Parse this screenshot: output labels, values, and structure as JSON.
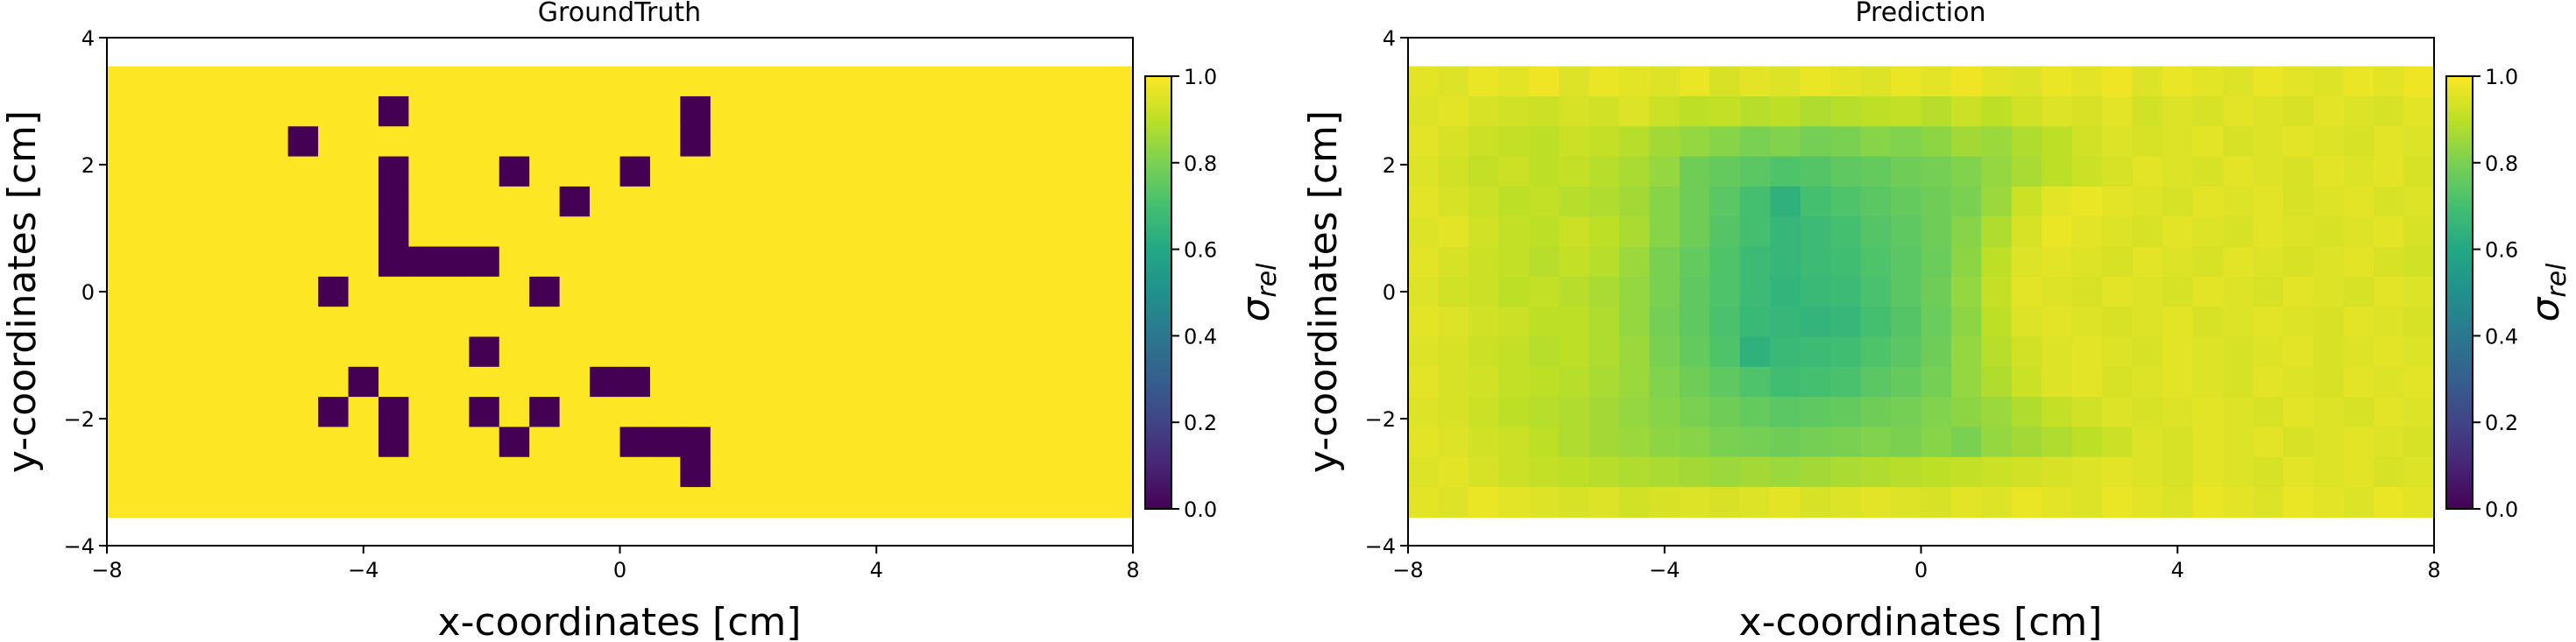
{
  "chart_data": [
    {
      "type": "heatmap",
      "title": "GroundTruth",
      "xlabel": "x-coordinates [cm]",
      "ylabel": "y-coordinates [cm]",
      "xlim": [
        -8,
        8
      ],
      "ylim": [
        -4,
        4
      ],
      "xticks": [
        -8,
        -4,
        0,
        4,
        8
      ],
      "yticks": [
        -4,
        -2,
        0,
        2,
        4
      ],
      "extent": [
        -8,
        8,
        -3.55,
        3.55
      ],
      "grid": false,
      "colorbar": {
        "label": "σ",
        "label_sub": "rel",
        "range": [
          0,
          1
        ],
        "ticks": [
          "0.0",
          "0.2",
          "0.4",
          "0.6",
          "0.8",
          "1.0"
        ]
      },
      "grid_shape": [
        15,
        34
      ],
      "background_value": 1.0,
      "low_cells_value": 0.0,
      "low_cells_note_rows_top_to_bottom_cols_left_to_right": [
        [
          1,
          9
        ],
        [
          1,
          19
        ],
        [
          2,
          6
        ],
        [
          2,
          19
        ],
        [
          3,
          9
        ],
        [
          3,
          13
        ],
        [
          3,
          17
        ],
        [
          4,
          9
        ],
        [
          4,
          15
        ],
        [
          5,
          9
        ],
        [
          6,
          9
        ],
        [
          6,
          10
        ],
        [
          6,
          11
        ],
        [
          6,
          12
        ],
        [
          7,
          7
        ],
        [
          7,
          14
        ],
        [
          9,
          12
        ],
        [
          10,
          8
        ],
        [
          10,
          16
        ],
        [
          10,
          17
        ],
        [
          11,
          7
        ],
        [
          11,
          9
        ],
        [
          11,
          12
        ],
        [
          11,
          14
        ],
        [
          12,
          9
        ],
        [
          12,
          13
        ],
        [
          12,
          17
        ],
        [
          12,
          18
        ],
        [
          12,
          19
        ],
        [
          13,
          19
        ]
      ]
    },
    {
      "type": "heatmap",
      "title": "Prediction",
      "xlabel": "x-coordinates [cm]",
      "ylabel": "y-coordinates [cm]",
      "xlim": [
        -8,
        8
      ],
      "ylim": [
        -4,
        4
      ],
      "xticks": [
        -8,
        -4,
        0,
        4,
        8
      ],
      "yticks": [
        -4,
        -2,
        0,
        2,
        4
      ],
      "extent": [
        -8,
        8,
        -3.55,
        3.55
      ],
      "grid": false,
      "colorbar": {
        "label": "σ",
        "label_sub": "rel",
        "range": [
          0,
          1
        ],
        "ticks": [
          "0.0",
          "0.2",
          "0.4",
          "0.6",
          "0.8",
          "1.0"
        ]
      },
      "grid_shape": [
        15,
        34
      ],
      "values_rows_top_to_bottom": [
        [
          0.96,
          0.95,
          0.97,
          0.96,
          0.98,
          0.95,
          0.97,
          0.96,
          0.95,
          0.97,
          0.94,
          0.96,
          0.95,
          0.97,
          0.96,
          0.95,
          0.97,
          0.96,
          0.98,
          0.96,
          0.95,
          0.97,
          0.96,
          0.98,
          0.95,
          0.97,
          0.96,
          0.95,
          0.97,
          0.96,
          0.95,
          0.97,
          0.96,
          0.98
        ],
        [
          0.95,
          0.96,
          0.94,
          0.93,
          0.92,
          0.94,
          0.93,
          0.95,
          0.92,
          0.9,
          0.91,
          0.89,
          0.9,
          0.88,
          0.89,
          0.9,
          0.91,
          0.89,
          0.92,
          0.9,
          0.93,
          0.95,
          0.94,
          0.96,
          0.93,
          0.95,
          0.94,
          0.96,
          0.95,
          0.94,
          0.96,
          0.95,
          0.94,
          0.96
        ],
        [
          0.96,
          0.94,
          0.92,
          0.91,
          0.9,
          0.92,
          0.91,
          0.89,
          0.86,
          0.84,
          0.82,
          0.8,
          0.81,
          0.79,
          0.8,
          0.82,
          0.81,
          0.83,
          0.86,
          0.85,
          0.88,
          0.9,
          0.93,
          0.95,
          0.94,
          0.95,
          0.96,
          0.94,
          0.95,
          0.96,
          0.95,
          0.94,
          0.96,
          0.95
        ],
        [
          0.95,
          0.93,
          0.91,
          0.92,
          0.9,
          0.91,
          0.89,
          0.87,
          0.84,
          0.78,
          0.76,
          0.74,
          0.72,
          0.73,
          0.75,
          0.76,
          0.78,
          0.79,
          0.81,
          0.84,
          0.87,
          0.9,
          0.92,
          0.94,
          0.96,
          0.95,
          0.94,
          0.96,
          0.95,
          0.94,
          0.96,
          0.95,
          0.96,
          0.94
        ],
        [
          0.96,
          0.94,
          0.92,
          0.9,
          0.91,
          0.89,
          0.88,
          0.86,
          0.82,
          0.78,
          0.74,
          0.7,
          0.64,
          0.7,
          0.72,
          0.74,
          0.76,
          0.78,
          0.8,
          0.85,
          0.92,
          0.96,
          0.97,
          0.96,
          0.95,
          0.94,
          0.96,
          0.95,
          0.96,
          0.94,
          0.95,
          0.96,
          0.94,
          0.95
        ],
        [
          0.95,
          0.96,
          0.93,
          0.91,
          0.9,
          0.92,
          0.9,
          0.87,
          0.82,
          0.78,
          0.73,
          0.7,
          0.66,
          0.68,
          0.7,
          0.73,
          0.75,
          0.78,
          0.82,
          0.88,
          0.94,
          0.97,
          0.96,
          0.95,
          0.94,
          0.96,
          0.95,
          0.94,
          0.96,
          0.95,
          0.94,
          0.95,
          0.96,
          0.94
        ],
        [
          0.96,
          0.94,
          0.92,
          0.91,
          0.89,
          0.91,
          0.89,
          0.85,
          0.8,
          0.76,
          0.72,
          0.68,
          0.66,
          0.68,
          0.69,
          0.72,
          0.74,
          0.77,
          0.83,
          0.9,
          0.95,
          0.96,
          0.95,
          0.94,
          0.96,
          0.95,
          0.94,
          0.96,
          0.95,
          0.94,
          0.95,
          0.96,
          0.94,
          0.93
        ],
        [
          0.95,
          0.93,
          0.92,
          0.9,
          0.91,
          0.89,
          0.87,
          0.84,
          0.8,
          0.75,
          0.72,
          0.68,
          0.65,
          0.67,
          0.68,
          0.71,
          0.74,
          0.78,
          0.84,
          0.91,
          0.96,
          0.95,
          0.94,
          0.96,
          0.95,
          0.94,
          0.96,
          0.95,
          0.94,
          0.96,
          0.95,
          0.94,
          0.96,
          0.95
        ],
        [
          0.96,
          0.95,
          0.93,
          0.92,
          0.9,
          0.9,
          0.88,
          0.84,
          0.79,
          0.75,
          0.71,
          0.67,
          0.66,
          0.65,
          0.66,
          0.7,
          0.73,
          0.77,
          0.83,
          0.9,
          0.95,
          0.96,
          0.95,
          0.94,
          0.95,
          0.96,
          0.94,
          0.95,
          0.96,
          0.95,
          0.94,
          0.96,
          0.95,
          0.94
        ],
        [
          0.95,
          0.94,
          0.92,
          0.91,
          0.89,
          0.9,
          0.88,
          0.85,
          0.8,
          0.76,
          0.72,
          0.64,
          0.67,
          0.68,
          0.69,
          0.72,
          0.74,
          0.78,
          0.84,
          0.89,
          0.93,
          0.95,
          0.96,
          0.95,
          0.94,
          0.96,
          0.95,
          0.94,
          0.95,
          0.96,
          0.94,
          0.95,
          0.96,
          0.95
        ],
        [
          0.96,
          0.94,
          0.93,
          0.91,
          0.9,
          0.89,
          0.87,
          0.85,
          0.81,
          0.78,
          0.75,
          0.72,
          0.69,
          0.7,
          0.71,
          0.74,
          0.76,
          0.79,
          0.84,
          0.88,
          0.92,
          0.95,
          0.96,
          0.94,
          0.95,
          0.96,
          0.95,
          0.94,
          0.96,
          0.95,
          0.94,
          0.96,
          0.95,
          0.96
        ],
        [
          0.95,
          0.94,
          0.92,
          0.9,
          0.89,
          0.88,
          0.86,
          0.84,
          0.82,
          0.8,
          0.78,
          0.76,
          0.74,
          0.75,
          0.76,
          0.78,
          0.79,
          0.81,
          0.83,
          0.85,
          0.88,
          0.91,
          0.93,
          0.95,
          0.94,
          0.95,
          0.96,
          0.95,
          0.94,
          0.96,
          0.95,
          0.94,
          0.96,
          0.95
        ],
        [
          0.96,
          0.95,
          0.93,
          0.92,
          0.9,
          0.88,
          0.86,
          0.85,
          0.83,
          0.82,
          0.8,
          0.79,
          0.78,
          0.79,
          0.8,
          0.81,
          0.8,
          0.82,
          0.8,
          0.84,
          0.86,
          0.88,
          0.9,
          0.92,
          0.95,
          0.94,
          0.96,
          0.95,
          0.96,
          0.94,
          0.95,
          0.96,
          0.95,
          0.94
        ],
        [
          0.95,
          0.96,
          0.94,
          0.92,
          0.91,
          0.9,
          0.89,
          0.88,
          0.87,
          0.86,
          0.85,
          0.86,
          0.85,
          0.86,
          0.87,
          0.88,
          0.89,
          0.9,
          0.91,
          0.92,
          0.93,
          0.94,
          0.95,
          0.96,
          0.95,
          0.94,
          0.96,
          0.95,
          0.94,
          0.96,
          0.95,
          0.96,
          0.94,
          0.95
        ],
        [
          0.96,
          0.95,
          0.97,
          0.96,
          0.95,
          0.94,
          0.95,
          0.93,
          0.94,
          0.95,
          0.94,
          0.95,
          0.96,
          0.94,
          0.95,
          0.96,
          0.95,
          0.94,
          0.96,
          0.95,
          0.97,
          0.96,
          0.95,
          0.97,
          0.96,
          0.95,
          0.97,
          0.96,
          0.95,
          0.97,
          0.96,
          0.95,
          0.97,
          0.96
        ]
      ]
    }
  ]
}
